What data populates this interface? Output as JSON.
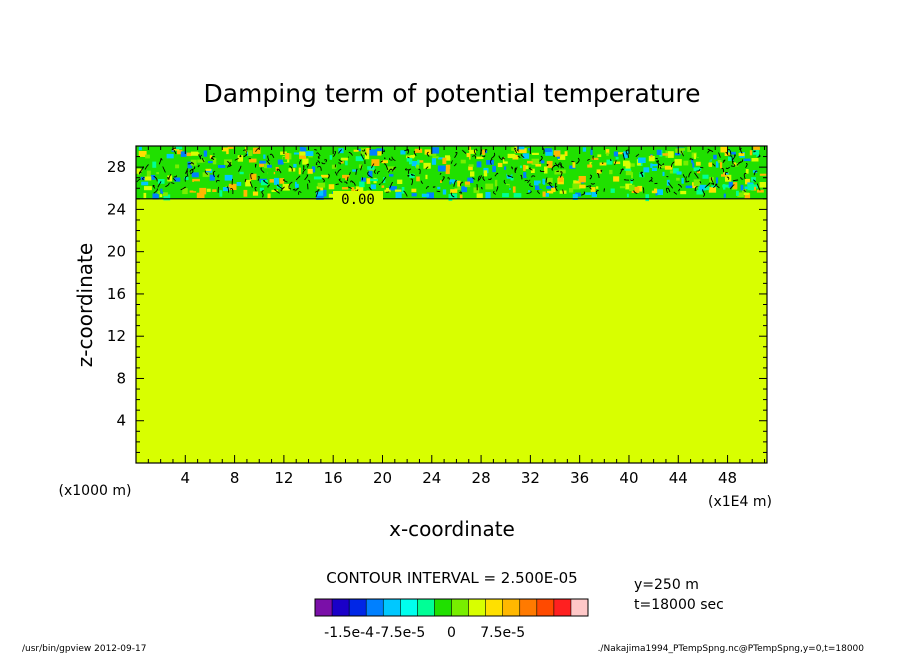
{
  "chart_data": {
    "type": "heatmap",
    "title": "Damping term of potential temperature",
    "xlabel": "x-coordinate",
    "ylabel": "z-coordinate",
    "x_unit": "(x1E4 m)",
    "y_unit": "(x1000 m)",
    "xlim": [
      0,
      51.2
    ],
    "ylim": [
      0,
      30
    ],
    "x_ticks": [
      4,
      8,
      12,
      16,
      20,
      24,
      28,
      32,
      36,
      40,
      44,
      48
    ],
    "y_ticks": [
      4,
      8,
      12,
      16,
      20,
      24,
      28
    ],
    "x_tick_labels": [
      "4",
      "8",
      "12",
      "16",
      "20",
      "24",
      "28",
      "32",
      "36",
      "40",
      "44",
      "48"
    ],
    "y_tick_labels": [
      "4",
      "8",
      "12",
      "16",
      "20",
      "24",
      "28"
    ],
    "uniform_field_value": 0,
    "damping_layer_bottom_z": 25,
    "contour_label": "0.00",
    "contour_interval_text": "CONTOUR INTERVAL = 2.500E-05",
    "colorbar": {
      "colors": [
        "#7a0fa8",
        "#1a00c8",
        "#0026e6",
        "#0080ff",
        "#00c8ff",
        "#00ffee",
        "#00ff96",
        "#20e000",
        "#78ee00",
        "#d8ff00",
        "#ffe000",
        "#ffb800",
        "#ff7a00",
        "#ff4a00",
        "#ff2020",
        "#ffc8c8"
      ],
      "tick_labels": [
        "-1.5e-4",
        "-7.5e-5",
        "0",
        "7.5e-5"
      ],
      "tick_values": [
        -0.00015,
        -7.5e-05,
        0,
        7.5e-05
      ]
    },
    "info_y": "y=250  m",
    "info_t": "t=18000 sec"
  },
  "footer": {
    "left": "/usr/bin/gpview   2012-09-17",
    "right": "./Nakajima1994_PTempSpng.nc@PTempSpng,y=0,t=18000"
  }
}
